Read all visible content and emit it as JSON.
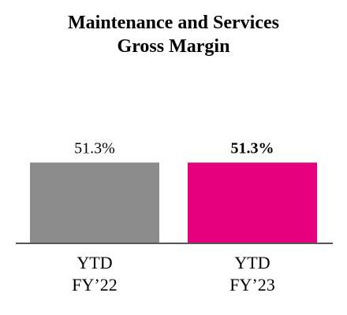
{
  "chart_data": {
    "type": "bar",
    "title_lines": [
      "Maintenance and Services",
      "Gross Margin"
    ],
    "categories": [
      {
        "line1": "YTD",
        "line2": "FY’22"
      },
      {
        "line1": "YTD",
        "line2": "FY’23"
      }
    ],
    "values": [
      51.3,
      51.3
    ],
    "data_labels": [
      "51.3%",
      "51.3%"
    ],
    "data_label_bold": [
      false,
      true
    ],
    "colors": [
      "#8c8c8c",
      "#e6007e"
    ],
    "axis_color": "#555555",
    "ylim": [
      0,
      80
    ],
    "grid": false,
    "legend": "none"
  }
}
